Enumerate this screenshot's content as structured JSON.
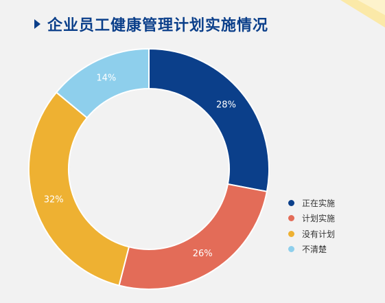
{
  "chart_data": {
    "type": "pie",
    "title": "企业员工健康管理计划实施情况",
    "donut": true,
    "categories": [
      "正在实施",
      "计划实施",
      "没有计划",
      "不清楚"
    ],
    "values": [
      28,
      26,
      32,
      14
    ],
    "labels": [
      "28%",
      "26%",
      "32%",
      "14%"
    ],
    "colors": [
      "#0b3f8a",
      "#e36c58",
      "#eeb132",
      "#8ecfec"
    ],
    "legend_position": "bottom-right"
  }
}
